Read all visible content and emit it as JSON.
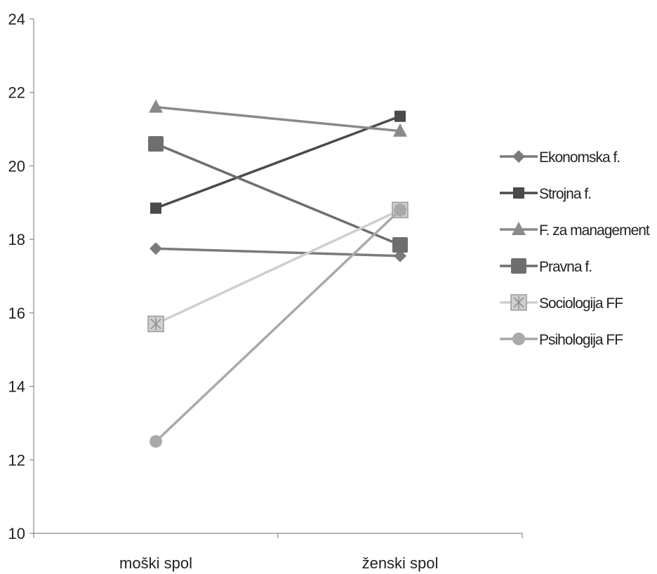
{
  "chart_data": {
    "type": "line",
    "categories": [
      "moški spol",
      "ženski spol"
    ],
    "ylim": [
      10,
      24
    ],
    "y_ticks": [
      "10",
      "12",
      "14",
      "16",
      "18",
      "20",
      "22",
      "24"
    ],
    "grid": false,
    "legend_position": "right",
    "series": [
      {
        "name": "Ekonomska f.",
        "values": [
          17.75,
          17.55
        ],
        "color": "#7a7a7a",
        "marker": "diamond"
      },
      {
        "name": "Strojna f.",
        "values": [
          18.85,
          21.35
        ],
        "color": "#4a4a4a",
        "marker": "square"
      },
      {
        "name": "F. za management",
        "values": [
          21.6,
          20.95
        ],
        "color": "#8a8a8a",
        "marker": "triangle"
      },
      {
        "name": "Pravna f.",
        "values": [
          20.6,
          17.85
        ],
        "color": "#6e6e6e",
        "marker": "square-large"
      },
      {
        "name": "Sociologija FF",
        "values": [
          15.7,
          18.8
        ],
        "color": "#cfcfcf",
        "marker": "star-square"
      },
      {
        "name": "Psihologija FF",
        "values": [
          12.5,
          18.8
        ],
        "color": "#a9a9a9",
        "marker": "circle"
      }
    ]
  }
}
